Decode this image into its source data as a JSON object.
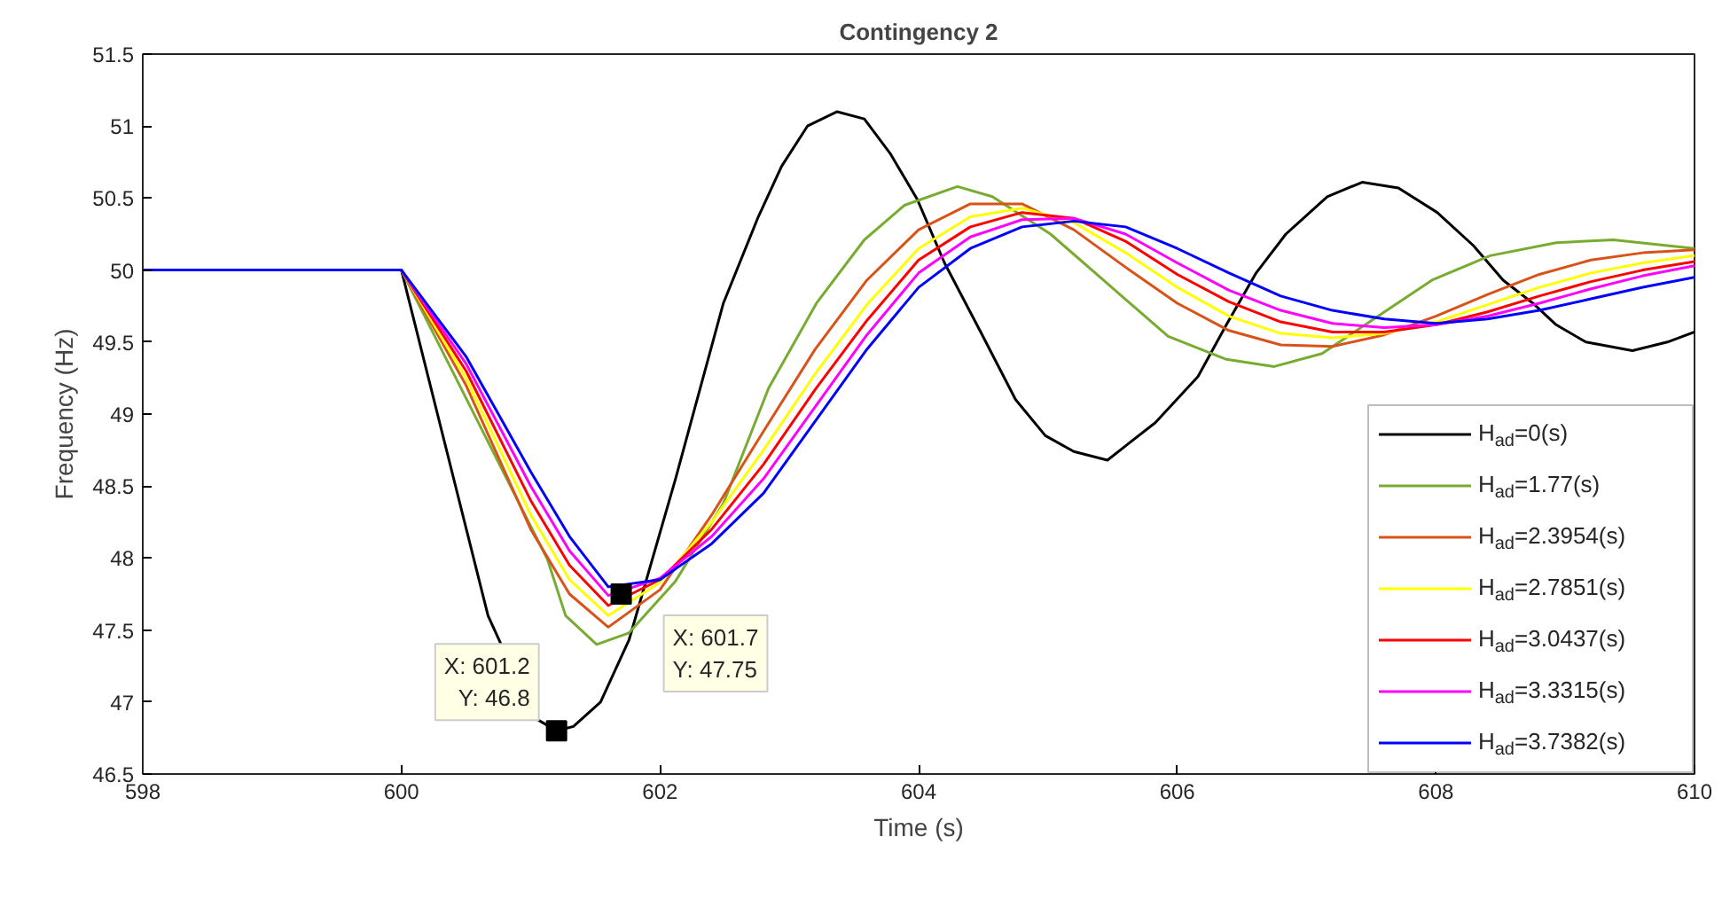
{
  "chart_data": {
    "type": "line",
    "title": "Contingency 2",
    "xlabel": "Time (s)",
    "ylabel": "Frequency (Hz)",
    "xlim": [
      598,
      610
    ],
    "xticks": [
      598,
      600,
      602,
      604,
      606,
      608,
      610
    ],
    "ylim": [
      46.5,
      51.5
    ],
    "yticks": [
      46.5,
      47,
      47.5,
      48,
      48.5,
      49,
      49.5,
      50,
      50.5,
      51,
      51.5
    ],
    "grid": false,
    "legend": "bottom right",
    "line_style": "solid",
    "marker": "none",
    "x": [
      598,
      600,
      600.5,
      601,
      601.3,
      601.6,
      602,
      602.4,
      602.8,
      603.2,
      603.6,
      604,
      604.4,
      604.8,
      605.2,
      605.6,
      606,
      606.4,
      606.8,
      607.2,
      607.6,
      608,
      608.4,
      608.8,
      609.2,
      609.6,
      610
    ],
    "series": [
      {
        "name": "H$_{ad}$=0(s)",
        "color": "#000000",
        "x": [
          598,
          600,
          600.67,
          601.03,
          601.2,
          601.33,
          601.54,
          601.76,
          602.12,
          602.49,
          602.76,
          602.94,
          603.14,
          603.37,
          603.58,
          603.78,
          603.99,
          604.2,
          604.48,
          604.75,
          604.98,
          605.2,
          605.46,
          605.83,
          606.16,
          606.38,
          606.61,
          606.84,
          607.16,
          607.43,
          607.71,
          608.01,
          608.29,
          608.52,
          608.75,
          608.93,
          609.16,
          609.52,
          609.79,
          610
        ],
        "values": [
          50,
          50,
          47.6,
          46.89,
          46.8,
          46.83,
          47.0,
          47.43,
          48.55,
          49.77,
          50.37,
          50.72,
          51.0,
          51.1,
          51.05,
          50.81,
          50.49,
          50.05,
          49.57,
          49.1,
          48.85,
          48.74,
          48.68,
          48.94,
          49.26,
          49.62,
          49.98,
          50.25,
          50.51,
          50.61,
          50.57,
          50.4,
          50.17,
          49.93,
          49.77,
          49.62,
          49.5,
          49.44,
          49.5,
          49.57
        ]
      },
      {
        "name": "H$_{ad}$=1.77(s)",
        "color": "#77ac30",
        "x": [
          598,
          600,
          600.68,
          601.13,
          601.27,
          601.51,
          601.76,
          602.12,
          602.49,
          602.84,
          603.21,
          603.58,
          603.89,
          604.3,
          604.57,
          605.02,
          605.48,
          605.93,
          606.38,
          606.75,
          607.12,
          607.52,
          607.97,
          608.42,
          608.93,
          609.37,
          610
        ],
        "values": [
          50,
          50,
          48.79,
          47.99,
          47.6,
          47.4,
          47.48,
          47.84,
          48.38,
          49.18,
          49.77,
          50.21,
          50.45,
          50.58,
          50.51,
          50.25,
          49.89,
          49.54,
          49.38,
          49.33,
          49.42,
          49.66,
          49.93,
          50.1,
          50.19,
          50.21,
          50.15
        ]
      },
      {
        "name": "H$_{ad}$=2.3954(s)",
        "color": "#d95319",
        "values": [
          50,
          50,
          49.2,
          48.2,
          47.75,
          47.52,
          47.78,
          48.3,
          48.88,
          49.45,
          49.93,
          50.28,
          50.46,
          50.46,
          50.28,
          50.02,
          49.77,
          49.58,
          49.48,
          49.47,
          49.55,
          49.68,
          49.83,
          49.97,
          50.07,
          50.12,
          50.14
        ]
      },
      {
        "name": "H$_{ad}$=2.7851(s)",
        "color": "#ffff00",
        "values": [
          50,
          50,
          49.25,
          48.3,
          47.85,
          47.6,
          47.83,
          48.25,
          48.75,
          49.28,
          49.76,
          50.15,
          50.37,
          50.43,
          50.33,
          50.12,
          49.88,
          49.68,
          49.56,
          49.53,
          49.56,
          49.64,
          49.76,
          49.88,
          49.98,
          50.05,
          50.1
        ]
      },
      {
        "name": "H$_{ad}$=3.0437(s)",
        "color": "#ff0000",
        "values": [
          50,
          50,
          49.3,
          48.4,
          47.95,
          47.67,
          47.85,
          48.2,
          48.65,
          49.17,
          49.65,
          50.07,
          50.3,
          50.4,
          50.36,
          50.2,
          49.97,
          49.78,
          49.64,
          49.57,
          49.57,
          49.62,
          49.71,
          49.82,
          49.92,
          50.0,
          50.06
        ]
      },
      {
        "name": "H$_{ad}$=3.3315(s)",
        "color": "#ff00ff",
        "values": [
          50,
          50,
          49.35,
          48.5,
          48.05,
          47.74,
          47.86,
          48.15,
          48.55,
          49.05,
          49.55,
          49.98,
          50.23,
          50.35,
          50.36,
          50.25,
          50.05,
          49.86,
          49.72,
          49.63,
          49.6,
          49.62,
          49.68,
          49.77,
          49.87,
          49.96,
          50.03
        ]
      },
      {
        "name": "H$_{ad}$=3.7382(s)",
        "color": "#0000ff",
        "values": [
          50,
          50,
          49.4,
          48.6,
          48.15,
          47.8,
          47.85,
          48.1,
          48.45,
          48.95,
          49.45,
          49.88,
          50.15,
          50.3,
          50.34,
          50.3,
          50.15,
          49.98,
          49.82,
          49.72,
          49.66,
          49.63,
          49.66,
          49.72,
          49.8,
          49.88,
          49.95
        ]
      }
    ],
    "annotations": [
      {
        "text": "X: 601.2\nY: 46.8",
        "x": 601.2,
        "y": 46.8
      },
      {
        "text": "X: 601.7\nY: 47.75",
        "x": 601.7,
        "y": 47.75
      }
    ]
  }
}
